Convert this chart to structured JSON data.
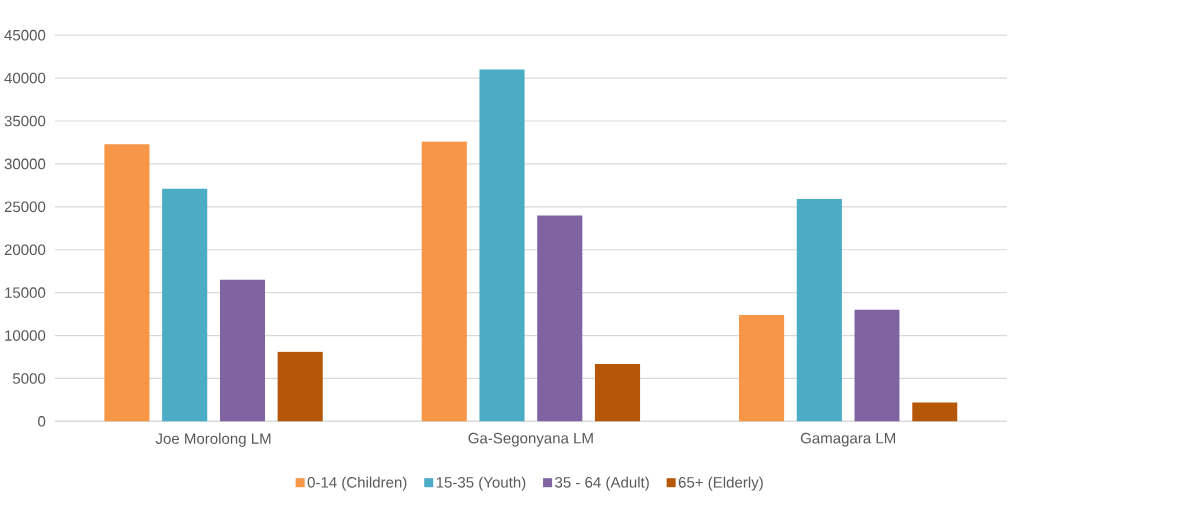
{
  "chart_data": {
    "type": "bar",
    "categories": [
      "Joe Morolong LM",
      "Ga-Segonyana LM",
      "Gamagara LM"
    ],
    "series": [
      {
        "name": "0-14 (Children)",
        "color": "#f79646",
        "values": [
          32300,
          32600,
          12400
        ]
      },
      {
        "name": "15-35 (Youth)",
        "color": "#4bacc6",
        "values": [
          27100,
          41000,
          25900
        ]
      },
      {
        "name": "35 - 64 (Adult)",
        "color": "#8064a2",
        "values": [
          16500,
          24000,
          13000
        ]
      },
      {
        "name": "65+ (Elderly)",
        "color": "#b65708",
        "values": [
          8100,
          6700,
          2200
        ]
      }
    ],
    "ylim": [
      0,
      45000
    ],
    "yticks": [
      0,
      5000,
      10000,
      15000,
      20000,
      25000,
      30000,
      35000,
      40000,
      45000
    ],
    "grid": "y",
    "legend": "bottom"
  }
}
